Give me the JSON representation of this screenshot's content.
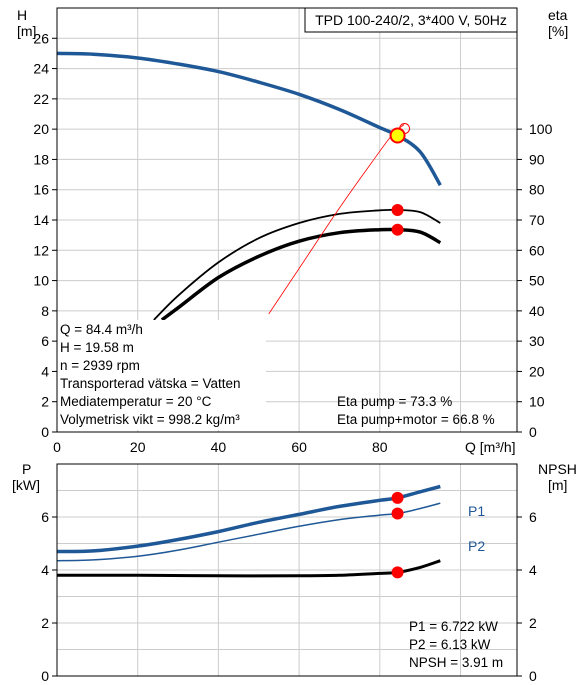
{
  "chart_data": [
    {
      "type": "line",
      "panel": "pump-curve",
      "title": "TPD 100-240/2, 3*400 V, 50Hz",
      "xlabel": "Q [m³/h]",
      "ylabel_left": "H",
      "ylabel_left_unit": "[m]",
      "ylabel_right": "eta",
      "ylabel_right_unit": "[%]",
      "xlim": [
        0,
        114
      ],
      "ylim_left": [
        0,
        28
      ],
      "ylim_right": [
        0,
        140
      ],
      "x_ticks": [
        0,
        20,
        40,
        60,
        80
      ],
      "y_left_ticks": [
        0,
        2,
        4,
        6,
        8,
        10,
        12,
        14,
        16,
        18,
        20,
        22,
        24,
        26
      ],
      "y_right_ticks": [
        0,
        10,
        20,
        30,
        40,
        50,
        60,
        70,
        80,
        90,
        100
      ],
      "grid": true,
      "series": [
        {
          "axis": "left",
          "color": "#1f5896",
          "width": 3.5,
          "x": [
            0,
            9,
            20,
            30,
            40,
            50,
            60,
            70,
            80,
            84.4,
            90,
            95
          ],
          "y": [
            25.0,
            24.95,
            24.7,
            24.3,
            23.8,
            23.1,
            22.3,
            21.3,
            20.1,
            19.58,
            18.5,
            16.3
          ]
        },
        {
          "axis": "right",
          "color": "#000000",
          "width": 1.8,
          "x": [
            24,
            30,
            40,
            50,
            60,
            70,
            80,
            84.4,
            90,
            95
          ],
          "y": [
            37,
            45,
            56,
            64,
            69,
            72,
            73.2,
            73.3,
            72.6,
            69
          ]
        },
        {
          "axis": "right",
          "color": "#000000",
          "width": 3.5,
          "x": [
            26,
            30,
            40,
            50,
            60,
            70,
            80,
            84.4,
            90,
            95
          ],
          "y": [
            37,
            41,
            51,
            58,
            63,
            65.8,
            66.8,
            66.8,
            66,
            62.5
          ]
        },
        {
          "axis": "left",
          "color": "#ff0000",
          "width": 0.8,
          "x": [
            52.5,
            60,
            70,
            78,
            83,
            86
          ],
          "y": [
            7.8,
            10.8,
            14.8,
            17.8,
            19.6,
            20.3
          ]
        }
      ],
      "points": [
        {
          "axis": "left",
          "x": 84.4,
          "y": 19.58,
          "kind": "duty"
        },
        {
          "axis": "right",
          "x": 84.4,
          "y": 73.3,
          "kind": "marker"
        },
        {
          "axis": "right",
          "x": 84.4,
          "y": 66.8,
          "kind": "marker"
        }
      ],
      "info_lines": [
        "Q = 84.4 m³/h",
        "H = 19.58 m",
        "n = 2939 rpm",
        "Transporterad vätska = Vatten",
        "Mediatemperatur = 20 °C",
        "Volymetrisk vikt = 998.2 kg/m³"
      ],
      "eta_lines": [
        "Eta pump = 73.3 %",
        "Eta pump+motor = 66.8 %"
      ]
    },
    {
      "type": "line",
      "panel": "power-curve",
      "ylabel_left": "P",
      "ylabel_left_unit": "[kW]",
      "ylabel_right": "NPSH",
      "ylabel_right_unit": "[m]",
      "xlim": [
        0,
        114
      ],
      "ylim": [
        0,
        8
      ],
      "y_left_ticks": [
        0,
        2,
        4,
        6
      ],
      "y_right_ticks": [
        0,
        2,
        4,
        6
      ],
      "grid": true,
      "series": [
        {
          "name": "P1",
          "color": "#1f5896",
          "width": 3.5,
          "x": [
            0,
            9,
            20,
            30,
            40,
            50,
            60,
            70,
            80,
            84.4,
            90,
            95
          ],
          "y": [
            4.7,
            4.72,
            4.9,
            5.15,
            5.45,
            5.8,
            6.1,
            6.4,
            6.63,
            6.722,
            6.95,
            7.15
          ]
        },
        {
          "name": "P2",
          "color": "#1f5896",
          "width": 1.5,
          "x": [
            0,
            9,
            20,
            30,
            40,
            50,
            60,
            70,
            80,
            84.4,
            90,
            95
          ],
          "y": [
            4.35,
            4.38,
            4.52,
            4.75,
            5.05,
            5.35,
            5.65,
            5.9,
            6.07,
            6.13,
            6.32,
            6.52
          ]
        },
        {
          "name": "",
          "color": "#000000",
          "width": 3,
          "x": [
            0,
            9,
            20,
            40,
            60,
            70,
            80,
            84.4,
            90,
            95
          ],
          "y": [
            3.8,
            3.8,
            3.8,
            3.78,
            3.78,
            3.8,
            3.87,
            3.91,
            4.1,
            4.35
          ]
        }
      ],
      "points": [
        {
          "x": 84.4,
          "y": 6.722
        },
        {
          "x": 84.4,
          "y": 6.13
        },
        {
          "x": 84.4,
          "y": 3.91
        }
      ],
      "info_lines": [
        "P1 = 6.722 kW",
        "P2 = 6.13 kW",
        "NPSH = 3.91 m"
      ]
    }
  ]
}
